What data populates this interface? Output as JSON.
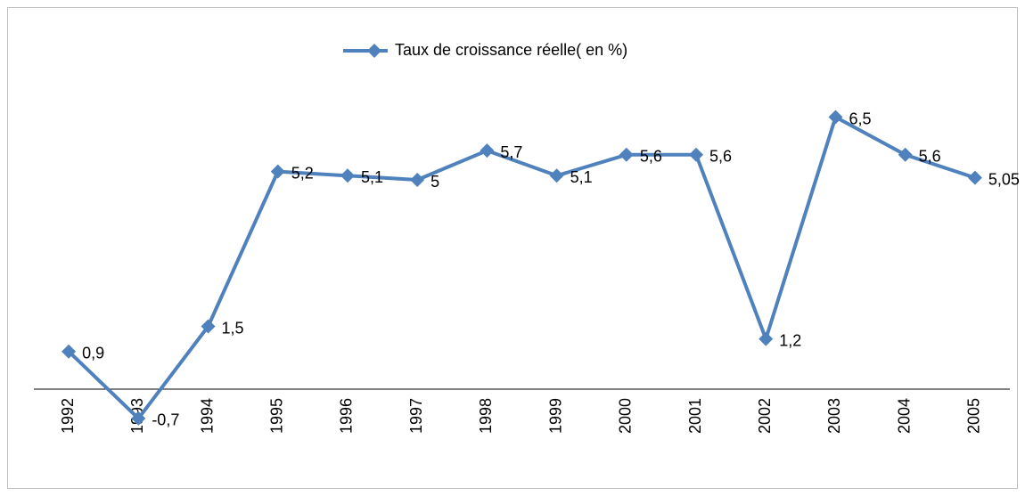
{
  "chart_data": {
    "type": "line",
    "categories": [
      "1992",
      "1993",
      "1994",
      "1995",
      "1996",
      "1997",
      "1998",
      "1999",
      "2000",
      "2001",
      "2002",
      "2003",
      "2004",
      "2005"
    ],
    "series": [
      {
        "name": "Taux de croissance réelle( en %)",
        "color": "#4f81bd",
        "values": [
          0.9,
          -0.7,
          1.5,
          5.2,
          5.1,
          5,
          5.7,
          5.1,
          5.6,
          5.6,
          1.2,
          6.5,
          5.6,
          5.05
        ],
        "value_labels": [
          "0,9",
          "-0,7",
          "1,5",
          "5,2",
          "5,1",
          "5",
          "5,7",
          "5,1",
          "5,6",
          "5,6",
          "1,2",
          "6,5",
          "5,6",
          "5,05"
        ]
      }
    ],
    "legend": "top"
  }
}
